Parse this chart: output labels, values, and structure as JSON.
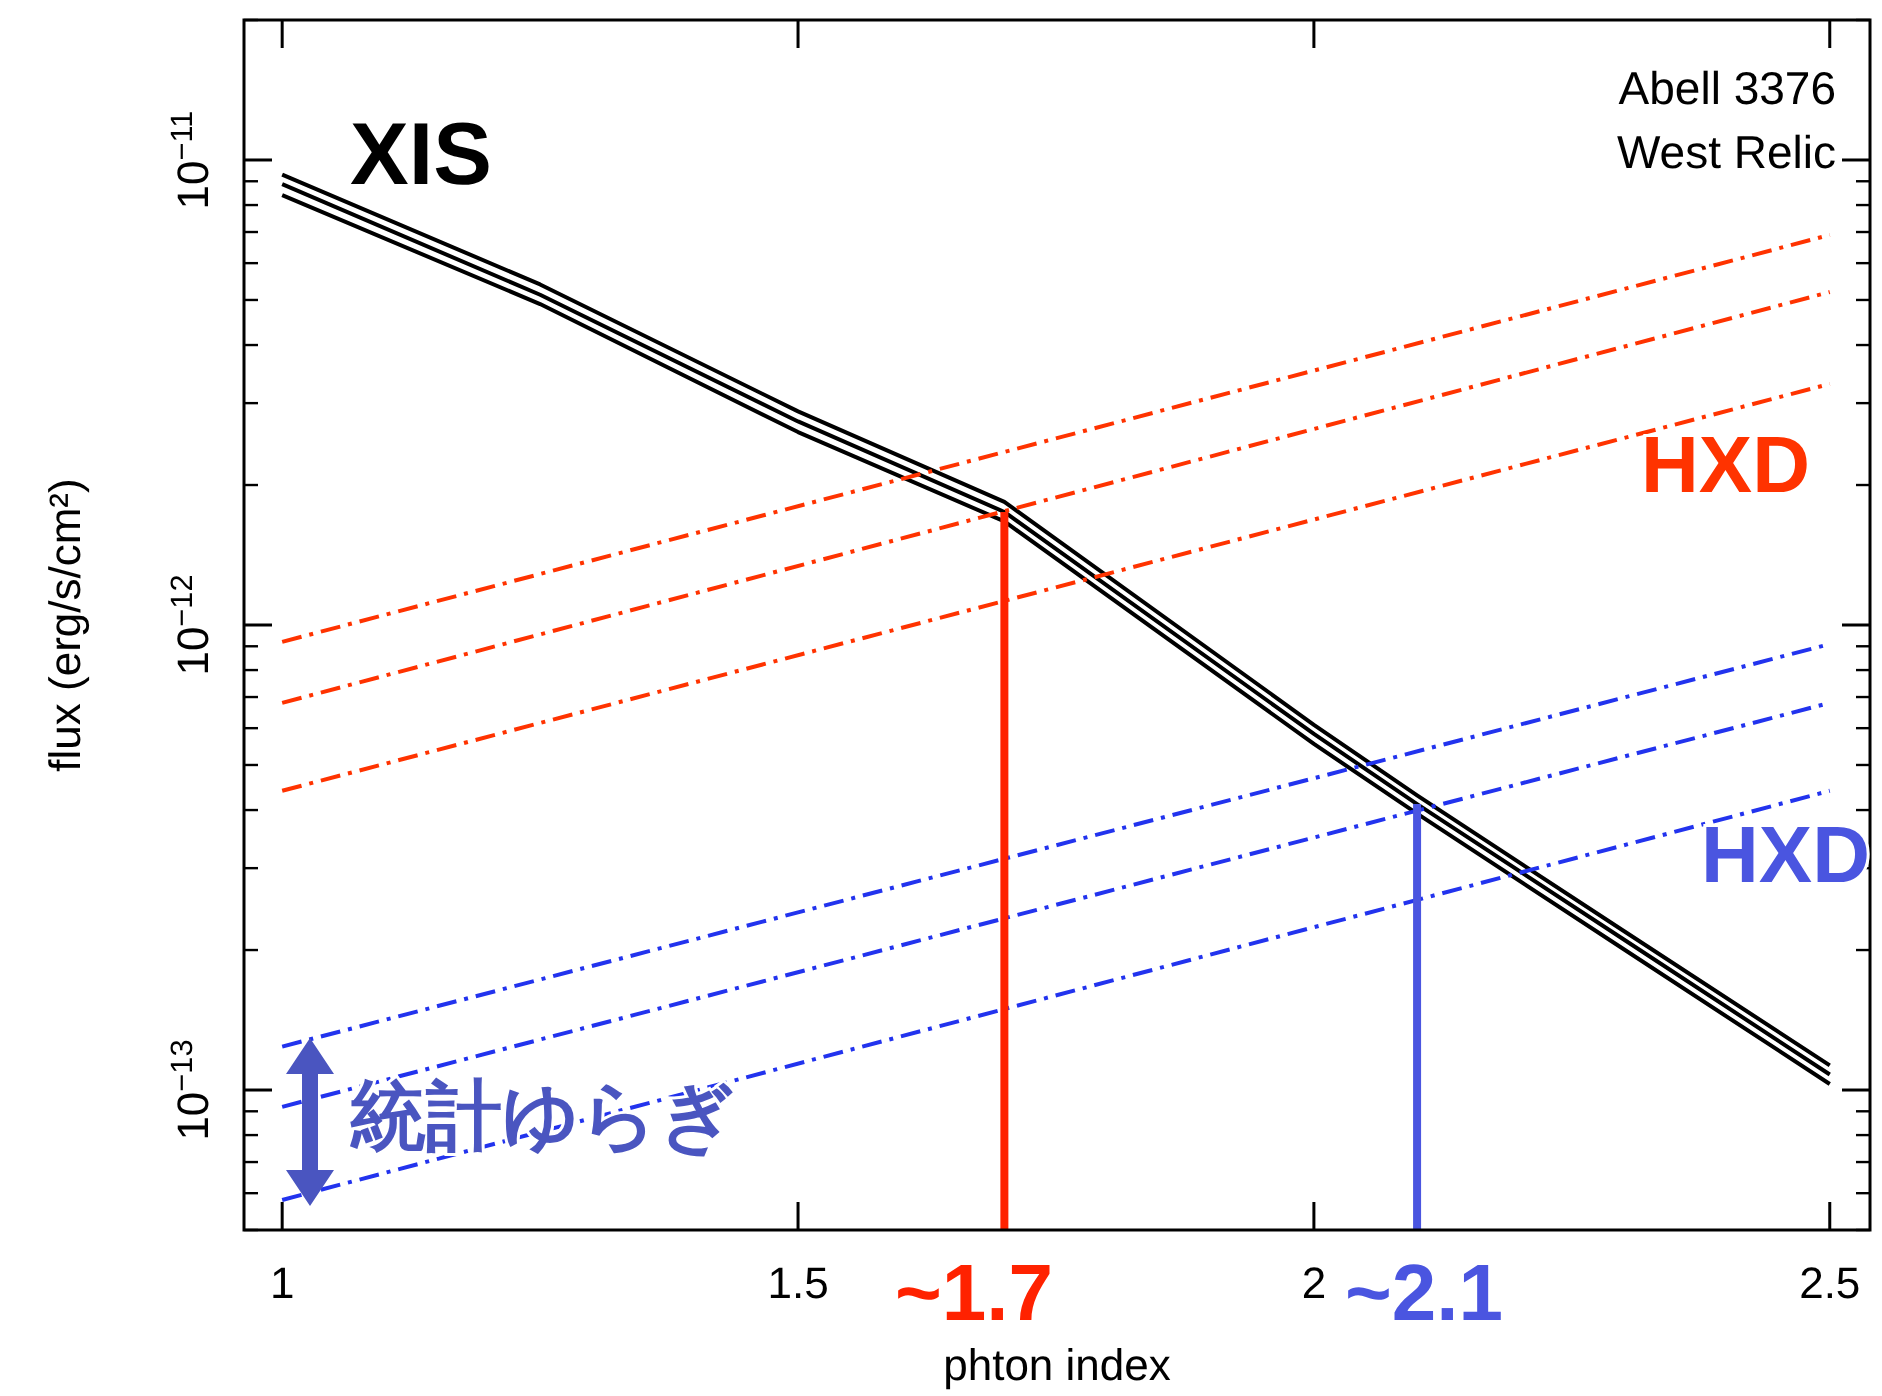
{
  "chart_data": {
    "type": "line",
    "xlabel": "phton index",
    "ylabel": "flux (erg/s/cm²)",
    "xlim": [
      0.963,
      2.539
    ],
    "ylim": [
      5e-14,
      2e-11
    ],
    "log": "y",
    "xticks": [
      1,
      1.5,
      2,
      2.5
    ],
    "yticks": [
      {
        "value": 1e-13,
        "label": "10$^{−13}$"
      },
      {
        "value": 1e-12,
        "label": "10$^{−12}$"
      },
      {
        "value": 1e-11,
        "label": "10$^{−11}$"
      }
    ],
    "series": [
      {
        "color": "#000000",
        "line_style": "solid",
        "x": [
          1.0,
          1.25,
          1.5,
          1.7,
          2.0,
          2.1,
          2.3,
          2.5
        ],
        "values": [
          9.3e-12,
          5.4e-12,
          2.88e-12,
          1.84e-12,
          6.1e-13,
          4.3e-13,
          2.2e-13,
          1.13e-13
        ]
      },
      {
        "color": "#000000",
        "line_style": "solid",
        "x": [
          1.0,
          1.25,
          1.5,
          1.7,
          2.0,
          2.1,
          2.3,
          2.5
        ],
        "values": [
          8.87e-12,
          5.13e-12,
          2.74e-12,
          1.75e-12,
          5.83e-13,
          4.12e-13,
          2.11e-13,
          1.08e-13
        ]
      },
      {
        "color": "#000000",
        "line_style": "solid",
        "x": [
          1.0,
          1.25,
          1.5,
          1.7,
          2.0,
          2.1,
          2.3,
          2.5
        ],
        "values": [
          8.4e-12,
          4.9e-12,
          2.6e-12,
          1.67e-12,
          5.55e-13,
          3.93e-13,
          2.01e-13,
          1.03e-13
        ]
      },
      {
        "color": "#ff3300",
        "line_style": "dashed",
        "x": [
          1.0,
          2.5
        ],
        "values": [
          9.2e-13,
          6.9e-12
        ]
      },
      {
        "color": "#ff3300",
        "line_style": "dashed",
        "x": [
          1.0,
          2.5
        ],
        "values": [
          6.8e-13,
          5.2e-12
        ]
      },
      {
        "color": "#ff3300",
        "line_style": "dashed",
        "x": [
          1.0,
          2.5
        ],
        "values": [
          4.4e-13,
          3.3e-12
        ]
      },
      {
        "color": "#2233ee",
        "line_style": "dashed",
        "x": [
          1.0,
          2.5
        ],
        "values": [
          1.24e-13,
          9.1e-13
        ]
      },
      {
        "color": "#2233ee",
        "line_style": "dashed",
        "x": [
          1.0,
          2.5
        ],
        "values": [
          9.2e-14,
          6.8e-13
        ]
      },
      {
        "color": "#2233ee",
        "line_style": "dashed",
        "x": [
          1.0,
          2.5
        ],
        "values": [
          5.8e-14,
          4.4e-13
        ]
      },
      {
        "color": "#ff2200",
        "line_style": "solid",
        "x": [
          1.7,
          1.7
        ],
        "values": [
          5e-14,
          1.75e-12
        ]
      },
      {
        "color": "#4a55e0",
        "line_style": "solid",
        "x": [
          2.1,
          2.1
        ],
        "values": [
          5e-14,
          4.12e-13
        ]
      }
    ],
    "annotations": [
      "XIS",
      "Abell 3376",
      "West Relic",
      "HXD",
      "HXD",
      "統計ゆらぎ",
      "~1.7",
      "~2.1"
    ]
  }
}
